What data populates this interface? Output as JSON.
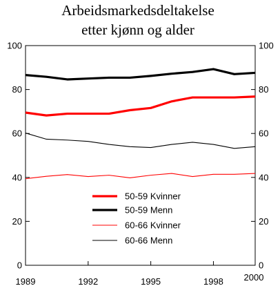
{
  "chart_data": {
    "type": "line",
    "title": "Arbeidsmarkedsdeltakelse",
    "subtitle": "etter kjønn og alder",
    "xlabel": "",
    "ylabel": "",
    "xlim": [
      1989,
      2000
    ],
    "ylim": [
      0,
      100
    ],
    "x_ticks": [
      1989,
      1992,
      1995,
      1998,
      2000
    ],
    "x_tick_labels": [
      "1989",
      "1992",
      "1995",
      "1998",
      "2000"
    ],
    "y_ticks": [
      0,
      20,
      40,
      60,
      80,
      100
    ],
    "y_tick_labels": [
      "0",
      "20",
      "40",
      "60",
      "80",
      "100"
    ],
    "y_ticks_right": true,
    "grid": false,
    "legend_placement": "bottom-center",
    "x": [
      1989,
      1990,
      1991,
      1992,
      1993,
      1994,
      1995,
      1996,
      1997,
      1998,
      1999,
      2000
    ],
    "series": [
      {
        "name": "50-59 Kvinner",
        "values": [
          69.5,
          68.2,
          69.0,
          69.0,
          69.0,
          70.6,
          71.6,
          74.6,
          76.4,
          76.4,
          76.4,
          76.8
        ],
        "color": "#ff0000",
        "line_style": "thick"
      },
      {
        "name": "50-59 Menn",
        "values": [
          86.6,
          85.8,
          84.6,
          85.0,
          85.4,
          85.4,
          86.2,
          87.2,
          88.0,
          89.3,
          87.0,
          87.6
        ],
        "color": "#000000",
        "line_style": "thick"
      },
      {
        "name": "60-66 Kvinner",
        "values": [
          39.4,
          40.5,
          41.3,
          40.4,
          41.0,
          39.8,
          41.0,
          41.8,
          40.4,
          41.4,
          41.4,
          41.8
        ],
        "color": "#ff0000",
        "line_style": "thin"
      },
      {
        "name": "60-66 Menn",
        "values": [
          60.2,
          57.4,
          57.0,
          56.4,
          55.0,
          54.0,
          53.6,
          55.0,
          56.0,
          55.0,
          53.2,
          54.0
        ],
        "color": "#000000",
        "line_style": "thin"
      }
    ]
  }
}
